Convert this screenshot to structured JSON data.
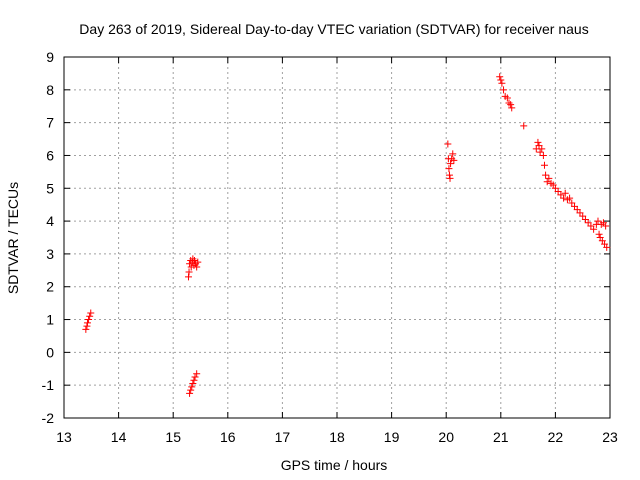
{
  "chart_data": {
    "type": "scatter",
    "title": "Day 263 of 2019, Sidereal Day-to-day VTEC variation (SDTVAR) for receiver naus",
    "xlabel": "GPS time / hours",
    "ylabel": "SDTVAR / TECUs",
    "xlim": [
      13,
      23
    ],
    "ylim": [
      -2,
      9
    ],
    "xticks": [
      "13",
      "14",
      "15",
      "16",
      "17",
      "18",
      "19",
      "20",
      "21",
      "22",
      "23"
    ],
    "yticks": [
      "-2",
      "-1",
      "0",
      "1",
      "2",
      "3",
      "4",
      "5",
      "6",
      "7",
      "8",
      "9"
    ],
    "grid": true,
    "marker": "+",
    "colors": {
      "series": "#ff0000",
      "grid": "#a0a0a0",
      "axis": "#000000"
    },
    "series": [
      {
        "name": "SDTVAR",
        "points": [
          [
            13.4,
            0.7
          ],
          [
            13.42,
            0.8
          ],
          [
            13.43,
            0.9
          ],
          [
            13.45,
            1.0
          ],
          [
            13.47,
            1.1
          ],
          [
            13.49,
            1.2
          ],
          [
            15.28,
            2.3
          ],
          [
            15.29,
            2.45
          ],
          [
            15.3,
            2.7
          ],
          [
            15.32,
            2.8
          ],
          [
            15.33,
            2.6
          ],
          [
            15.35,
            2.75
          ],
          [
            15.36,
            2.85
          ],
          [
            15.38,
            2.65
          ],
          [
            15.39,
            2.8
          ],
          [
            15.41,
            2.7
          ],
          [
            15.43,
            2.6
          ],
          [
            15.45,
            2.75
          ],
          [
            15.3,
            -1.25
          ],
          [
            15.32,
            -1.15
          ],
          [
            15.34,
            -1.05
          ],
          [
            15.36,
            -0.95
          ],
          [
            15.38,
            -0.85
          ],
          [
            15.4,
            -0.75
          ],
          [
            15.43,
            -0.65
          ],
          [
            20.03,
            6.35
          ],
          [
            20.04,
            5.9
          ],
          [
            20.05,
            5.6
          ],
          [
            20.06,
            5.4
          ],
          [
            20.07,
            5.3
          ],
          [
            20.08,
            5.75
          ],
          [
            20.1,
            5.9
          ],
          [
            20.12,
            6.05
          ],
          [
            20.14,
            5.85
          ],
          [
            20.98,
            8.4
          ],
          [
            21.0,
            8.3
          ],
          [
            21.02,
            8.2
          ],
          [
            21.05,
            8.0
          ],
          [
            21.08,
            7.8
          ],
          [
            21.12,
            7.75
          ],
          [
            21.15,
            7.6
          ],
          [
            21.18,
            7.55
          ],
          [
            21.2,
            7.45
          ],
          [
            21.42,
            6.9
          ],
          [
            21.65,
            6.2
          ],
          [
            21.68,
            6.4
          ],
          [
            21.7,
            6.3
          ],
          [
            21.72,
            6.1
          ],
          [
            21.75,
            6.2
          ],
          [
            21.78,
            6.0
          ],
          [
            21.8,
            5.7
          ],
          [
            21.82,
            5.4
          ],
          [
            21.85,
            5.2
          ],
          [
            21.88,
            5.3
          ],
          [
            21.92,
            5.15
          ],
          [
            21.96,
            5.1
          ],
          [
            22.0,
            5.0
          ],
          [
            22.05,
            4.9
          ],
          [
            22.1,
            4.8
          ],
          [
            22.15,
            4.7
          ],
          [
            22.18,
            4.85
          ],
          [
            22.22,
            4.65
          ],
          [
            22.26,
            4.7
          ],
          [
            22.3,
            4.55
          ],
          [
            22.35,
            4.45
          ],
          [
            22.4,
            4.35
          ],
          [
            22.45,
            4.25
          ],
          [
            22.5,
            4.15
          ],
          [
            22.55,
            4.05
          ],
          [
            22.6,
            3.95
          ],
          [
            22.65,
            3.85
          ],
          [
            22.7,
            3.75
          ],
          [
            22.75,
            3.9
          ],
          [
            22.78,
            4.0
          ],
          [
            22.8,
            3.6
          ],
          [
            22.82,
            3.5
          ],
          [
            22.84,
            3.9
          ],
          [
            22.86,
            3.4
          ],
          [
            22.88,
            3.95
          ],
          [
            22.9,
            3.3
          ],
          [
            22.92,
            3.85
          ],
          [
            22.94,
            3.2
          ]
        ]
      }
    ]
  }
}
